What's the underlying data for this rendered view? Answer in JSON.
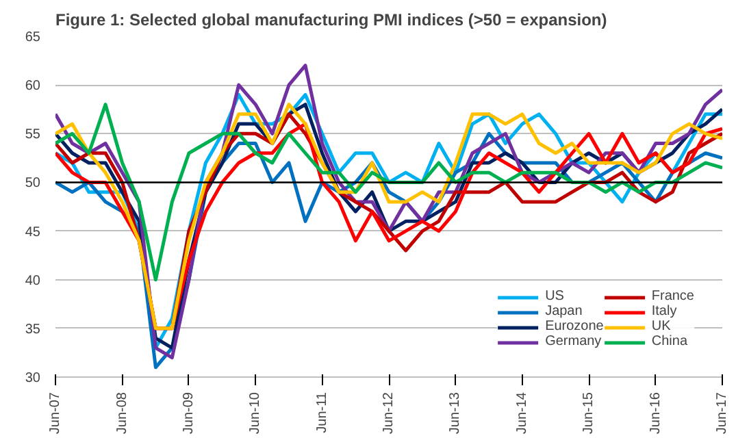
{
  "chart_data": {
    "type": "line",
    "title": "Figure 1: Selected global manufacturing PMI indices (>50 = expansion)",
    "x": [
      "2007-06",
      "2007-09",
      "2007-12",
      "2008-03",
      "2008-06",
      "2008-09",
      "2008-12",
      "2009-03",
      "2009-06",
      "2009-09",
      "2009-12",
      "2010-03",
      "2010-06",
      "2010-09",
      "2010-12",
      "2011-03",
      "2011-06",
      "2011-09",
      "2011-12",
      "2012-03",
      "2012-06",
      "2012-09",
      "2012-12",
      "2013-03",
      "2013-06",
      "2013-09",
      "2013-12",
      "2014-03",
      "2014-06",
      "2014-09",
      "2014-12",
      "2015-03",
      "2015-06",
      "2015-09",
      "2015-12",
      "2016-03",
      "2016-06",
      "2016-09",
      "2016-12",
      "2017-03",
      "2017-06"
    ],
    "series": [
      {
        "name": "US",
        "color": "#00b0f0",
        "values": [
          53,
          52,
          49,
          49,
          49,
          45,
          33,
          36,
          45,
          52,
          55,
          59,
          56,
          56,
          57,
          59,
          55,
          51,
          53,
          53,
          50,
          51,
          50,
          54,
          51,
          56,
          57,
          54,
          56,
          57,
          55,
          52,
          52,
          50,
          48,
          51,
          53,
          51,
          54,
          57,
          57
        ]
      },
      {
        "name": "Japan",
        "color": "#0070c0",
        "values": [
          50,
          49,
          50,
          48,
          47,
          45,
          31,
          33,
          40,
          49,
          52,
          54,
          54,
          50,
          52,
          46,
          50,
          49,
          50,
          52,
          49,
          48,
          46,
          48,
          51,
          52,
          55,
          53,
          52,
          52,
          52,
          50,
          50,
          51,
          52,
          50,
          48,
          51,
          52,
          53,
          52.5
        ]
      },
      {
        "name": "Eurozone",
        "color": "#002060",
        "values": [
          55,
          53,
          52,
          52,
          49,
          46,
          34,
          33,
          42,
          49,
          52,
          56,
          56,
          54,
          57,
          58,
          53,
          49,
          47,
          49,
          45,
          46,
          46,
          47,
          48,
          52,
          52,
          53,
          52,
          50,
          50,
          52,
          53,
          52,
          53,
          51,
          52,
          53,
          55,
          56,
          57.5
        ]
      },
      {
        "name": "Germany",
        "color": "#7030a0",
        "values": [
          57,
          54,
          53,
          54,
          51,
          48,
          33,
          32,
          40,
          50,
          53,
          60,
          58,
          55,
          60,
          62,
          54,
          50,
          48,
          48,
          45,
          48,
          46,
          49,
          49,
          53,
          54,
          55,
          51,
          50,
          51,
          52,
          51,
          53,
          53,
          51,
          54,
          54,
          55,
          58,
          59.5
        ]
      },
      {
        "name": "France",
        "color": "#c00000",
        "values": [
          54,
          52,
          53,
          53,
          50,
          44,
          35,
          35,
          45,
          49,
          53,
          55,
          55,
          54,
          57,
          55,
          52,
          49,
          48,
          47,
          45,
          43,
          45,
          46,
          49,
          49,
          49,
          50,
          48,
          48,
          48,
          49,
          50,
          50,
          51,
          49,
          48,
          49,
          53,
          54,
          55
        ]
      },
      {
        "name": "Italy",
        "color": "#ff0000",
        "values": [
          53,
          51,
          50,
          50,
          47,
          44,
          35,
          35,
          42,
          47,
          50,
          52,
          53,
          53,
          55,
          56,
          50,
          48,
          44,
          47,
          44,
          45,
          46,
          45,
          47,
          51,
          53,
          52,
          51,
          49,
          51,
          53,
          55,
          52,
          55,
          52,
          53,
          51,
          52,
          55,
          55.5
        ]
      },
      {
        "name": "UK",
        "color": "#ffc000",
        "values": [
          55,
          56,
          53,
          51,
          48,
          44,
          35,
          35,
          44,
          50,
          53,
          57,
          57,
          54,
          58,
          56,
          52,
          49,
          49,
          52,
          48,
          48,
          49,
          48,
          52,
          57,
          57,
          56,
          57,
          54,
          53,
          54,
          52,
          52,
          52,
          51,
          52,
          55,
          56,
          55,
          54.5
        ]
      },
      {
        "name": "China",
        "color": "#00b050",
        "values": [
          54,
          55,
          53,
          58,
          52,
          48,
          40,
          48,
          53,
          54,
          55,
          55,
          53,
          52,
          55,
          53,
          51,
          51,
          49,
          51,
          50,
          50,
          50,
          52,
          50,
          51,
          51,
          50,
          51,
          51,
          51,
          50,
          50,
          49,
          50,
          49,
          50,
          50,
          51,
          52,
          51.5
        ]
      }
    ],
    "xlim": [
      "2007-06",
      "2017-06"
    ],
    "xticks": [
      {
        "value": "2007-06",
        "label": "Jun-07"
      },
      {
        "value": "2008-06",
        "label": "Jun-08"
      },
      {
        "value": "2009-06",
        "label": "Jun-09"
      },
      {
        "value": "2010-06",
        "label": "Jun-10"
      },
      {
        "value": "2011-06",
        "label": "Jun-11"
      },
      {
        "value": "2012-06",
        "label": "Jun-12"
      },
      {
        "value": "2013-06",
        "label": "Jun-13"
      },
      {
        "value": "2014-06",
        "label": "Jun-14"
      },
      {
        "value": "2015-06",
        "label": "Jun-15"
      },
      {
        "value": "2016-06",
        "label": "Jun-16"
      },
      {
        "value": "2017-06",
        "label": "Jun-17"
      }
    ],
    "ylim": [
      30,
      65
    ],
    "yticks": [
      30,
      35,
      40,
      45,
      50,
      55,
      60,
      65
    ],
    "ref_lines": [
      {
        "axis": "y",
        "value": 50,
        "color": "#000000"
      }
    ],
    "grid": "y",
    "legend": "bottom right",
    "line_style": "solid"
  }
}
